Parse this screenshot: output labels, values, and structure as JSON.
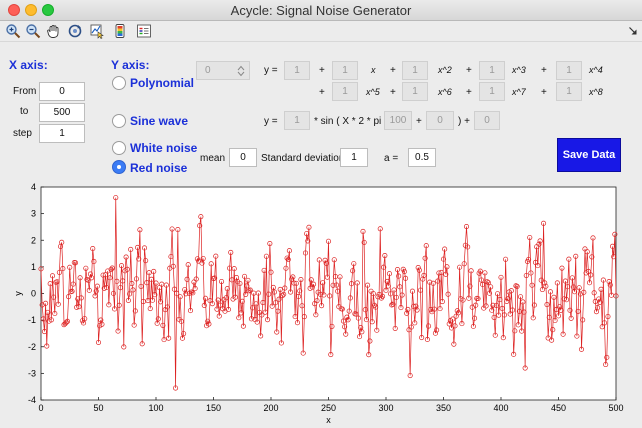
{
  "window": {
    "title": "Acycle: Signal Noise Generator"
  },
  "toolbar": {
    "icons": [
      "zoom-in-icon",
      "zoom-out-icon",
      "pan-hand-icon",
      "rotate-icon",
      "data-cursor-icon",
      "colorbar-icon",
      "legend-icon",
      "dock-arrow-icon"
    ]
  },
  "xaxis_panel": {
    "title": "X axis:",
    "from_label": "From",
    "from_value": "0",
    "to_label": "to",
    "to_value": "500",
    "step_label": "step",
    "step_value": "1"
  },
  "yaxis_panel": {
    "title": "Y axis:",
    "options": [
      {
        "label": "Polynomial",
        "selected": false
      },
      {
        "label": "Sine wave",
        "selected": false
      },
      {
        "label": "White noise",
        "selected": false
      },
      {
        "label": "Red noise",
        "selected": true
      }
    ]
  },
  "polynomial": {
    "degree_value": "0",
    "y_eq": "y =",
    "plus": "+",
    "coefficients": [
      "1",
      "1",
      "1",
      "1",
      "1",
      "1",
      "1",
      "1",
      "1"
    ],
    "terms": [
      "x",
      "x^2",
      "x^3",
      "x^4",
      "x^5",
      "x^6",
      "x^7",
      "x^8"
    ]
  },
  "sine": {
    "y_eq": "y =",
    "amp": "1",
    "mid_text": "* sin ( X * 2 * pi /",
    "period": "100",
    "plus": "+",
    "phase": "0",
    "close_text": ") +",
    "offset": "0"
  },
  "noise": {
    "mean_label": "mean",
    "mean_value": "0",
    "std_label": "Standard deviation",
    "std_value": "1",
    "a_label": "a =",
    "a_value": "0.5"
  },
  "save_button": {
    "label": "Save Data"
  },
  "chart_data": {
    "type": "line",
    "xlabel": "x",
    "ylabel": "y",
    "xlim": [
      0,
      500
    ],
    "ylim": [
      -4,
      4
    ],
    "xticks": [
      "0",
      "50",
      "100",
      "150",
      "200",
      "250",
      "300",
      "350",
      "400",
      "450",
      "500"
    ],
    "yticks": [
      "-4",
      "-3",
      "-2",
      "-1",
      "0",
      "1",
      "2",
      "3",
      "4"
    ],
    "grid": false,
    "line_color": "#dd2222",
    "marker": "circle-open",
    "x_start": 0,
    "x_step": 1,
    "n_points": 501,
    "series_generator": "red noise AR(1), a=0.5, mean 0, sd 1",
    "extremes": [
      {
        "x": 65,
        "y": 3.6
      },
      {
        "x": 117,
        "y": -3.55
      },
      {
        "x": 421,
        "y": -2.8
      }
    ]
  }
}
